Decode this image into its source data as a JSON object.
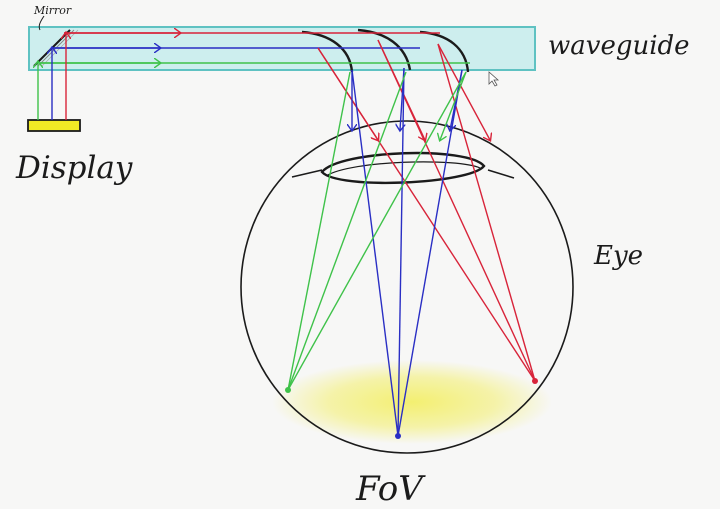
{
  "labels": {
    "mirror": "Mirror",
    "waveguide": "waveguide",
    "display": "Display",
    "eye": "Eye",
    "fov": "FoV"
  },
  "colors": {
    "red": "#d8243a",
    "blue": "#2a2fc4",
    "green": "#3fc24a",
    "waveguide_fill": "#cdeeee",
    "waveguide_edge": "#5fc2c2",
    "fov_glow": "#f3ef6a",
    "display_fill": "#f1ea25",
    "ink": "#1b1b1b"
  }
}
